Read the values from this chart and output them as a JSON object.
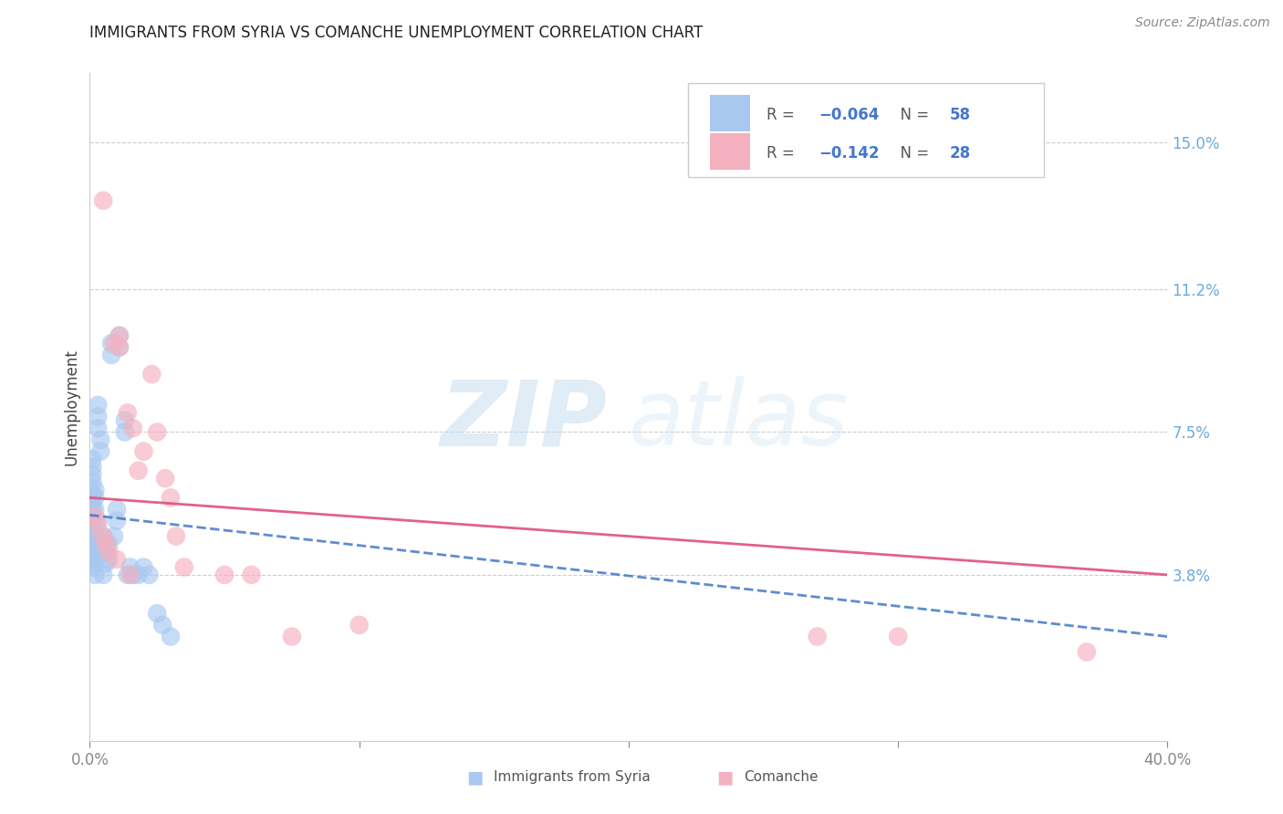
{
  "title": "IMMIGRANTS FROM SYRIA VS COMANCHE UNEMPLOYMENT CORRELATION CHART",
  "source": "Source: ZipAtlas.com",
  "ylabel": "Unemployment",
  "right_yticks": [
    "15.0%",
    "11.2%",
    "7.5%",
    "3.8%"
  ],
  "right_ytick_values": [
    0.15,
    0.112,
    0.075,
    0.038
  ],
  "xlim": [
    0.0,
    0.4
  ],
  "ylim": [
    -0.005,
    0.168
  ],
  "color_blue": "#a8c8f0",
  "color_pink": "#f5b0c0",
  "color_blue_line": "#4477cc",
  "color_pink_line": "#e0507a",
  "watermark_zip": "ZIP",
  "watermark_atlas": "atlas",
  "syria_points": [
    [
      0.001,
      0.055
    ],
    [
      0.001,
      0.051
    ],
    [
      0.001,
      0.049
    ],
    [
      0.001,
      0.053
    ],
    [
      0.001,
      0.057
    ],
    [
      0.001,
      0.059
    ],
    [
      0.001,
      0.062
    ],
    [
      0.001,
      0.064
    ],
    [
      0.001,
      0.066
    ],
    [
      0.001,
      0.068
    ],
    [
      0.001,
      0.046
    ],
    [
      0.001,
      0.044
    ],
    [
      0.001,
      0.042
    ],
    [
      0.001,
      0.04
    ],
    [
      0.001,
      0.048
    ],
    [
      0.001,
      0.043
    ],
    [
      0.002,
      0.055
    ],
    [
      0.002,
      0.058
    ],
    [
      0.002,
      0.06
    ],
    [
      0.002,
      0.047
    ],
    [
      0.002,
      0.044
    ],
    [
      0.002,
      0.041
    ],
    [
      0.002,
      0.038
    ],
    [
      0.002,
      0.05
    ],
    [
      0.003,
      0.082
    ],
    [
      0.003,
      0.079
    ],
    [
      0.003,
      0.076
    ],
    [
      0.003,
      0.052
    ],
    [
      0.003,
      0.048
    ],
    [
      0.003,
      0.044
    ],
    [
      0.004,
      0.073
    ],
    [
      0.004,
      0.07
    ],
    [
      0.004,
      0.045
    ],
    [
      0.005,
      0.048
    ],
    [
      0.005,
      0.045
    ],
    [
      0.005,
      0.038
    ],
    [
      0.006,
      0.044
    ],
    [
      0.006,
      0.041
    ],
    [
      0.007,
      0.046
    ],
    [
      0.007,
      0.042
    ],
    [
      0.008,
      0.098
    ],
    [
      0.008,
      0.095
    ],
    [
      0.009,
      0.048
    ],
    [
      0.01,
      0.055
    ],
    [
      0.01,
      0.052
    ],
    [
      0.011,
      0.1
    ],
    [
      0.011,
      0.097
    ],
    [
      0.013,
      0.078
    ],
    [
      0.013,
      0.075
    ],
    [
      0.014,
      0.038
    ],
    [
      0.015,
      0.04
    ],
    [
      0.016,
      0.038
    ],
    [
      0.018,
      0.038
    ],
    [
      0.02,
      0.04
    ],
    [
      0.022,
      0.038
    ],
    [
      0.025,
      0.028
    ],
    [
      0.027,
      0.025
    ],
    [
      0.03,
      0.022
    ]
  ],
  "comanche_points": [
    [
      0.005,
      0.135
    ],
    [
      0.009,
      0.098
    ],
    [
      0.011,
      0.1
    ],
    [
      0.011,
      0.097
    ],
    [
      0.014,
      0.08
    ],
    [
      0.016,
      0.076
    ],
    [
      0.018,
      0.065
    ],
    [
      0.02,
      0.07
    ],
    [
      0.023,
      0.09
    ],
    [
      0.025,
      0.075
    ],
    [
      0.028,
      0.063
    ],
    [
      0.03,
      0.058
    ],
    [
      0.032,
      0.048
    ],
    [
      0.035,
      0.04
    ],
    [
      0.05,
      0.038
    ],
    [
      0.06,
      0.038
    ],
    [
      0.075,
      0.022
    ],
    [
      0.1,
      0.025
    ],
    [
      0.002,
      0.053
    ],
    [
      0.003,
      0.051
    ],
    [
      0.005,
      0.048
    ],
    [
      0.006,
      0.046
    ],
    [
      0.007,
      0.044
    ],
    [
      0.01,
      0.042
    ],
    [
      0.015,
      0.038
    ],
    [
      0.3,
      0.022
    ],
    [
      0.37,
      0.018
    ],
    [
      0.27,
      0.022
    ]
  ],
  "syria_trend_x": [
    0.0,
    0.4
  ],
  "syria_trend_y": [
    0.0535,
    0.022
  ],
  "comanche_trend_x": [
    0.0,
    0.4
  ],
  "comanche_trend_y": [
    0.058,
    0.038
  ]
}
